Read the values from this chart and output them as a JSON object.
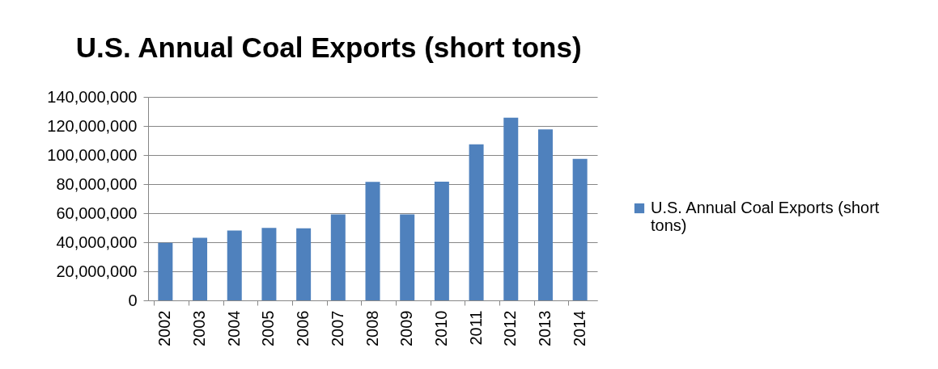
{
  "chart_data": {
    "type": "bar",
    "title": "U.S. Annual Coal Exports (short tons)",
    "categories": [
      "2002",
      "2003",
      "2004",
      "2005",
      "2006",
      "2007",
      "2008",
      "2009",
      "2010",
      "2011",
      "2012",
      "2013",
      "2014"
    ],
    "series": [
      {
        "name": "U.S. Annual Coal Exports (short tons)",
        "color": "#4f81bd",
        "values": [
          39600000,
          43000000,
          48000000,
          49900000,
          49600000,
          59200000,
          81500000,
          59100000,
          81700000,
          107300000,
          125700000,
          117700000,
          97300000
        ]
      }
    ],
    "ylim": [
      0,
      140000000
    ],
    "yticks": [
      {
        "value": 0,
        "label": "0"
      },
      {
        "value": 20000000,
        "label": "20,000,000"
      },
      {
        "value": 40000000,
        "label": "40,000,000"
      },
      {
        "value": 60000000,
        "label": "60,000,000"
      },
      {
        "value": 80000000,
        "label": "80,000,000"
      },
      {
        "value": 100000000,
        "label": "100,000,000"
      },
      {
        "value": 120000000,
        "label": "120,000,000"
      },
      {
        "value": 140000000,
        "label": "140,000,000"
      }
    ],
    "grid": "y",
    "legend": "right"
  }
}
